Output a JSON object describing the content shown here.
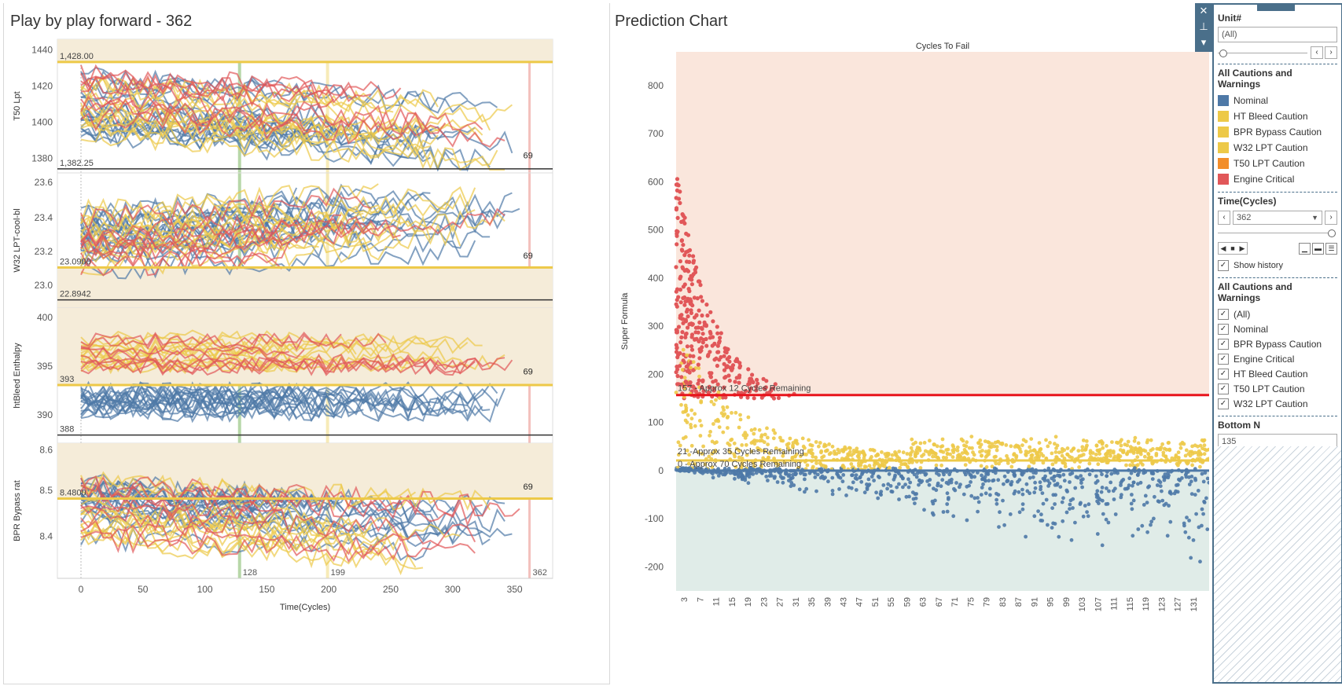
{
  "left": {
    "title": "Play by play forward - 362",
    "xlabel": "Time(Cycles)",
    "x_ticks": [
      "0",
      "50",
      "100",
      "150",
      "200",
      "250",
      "300",
      "350"
    ],
    "vlines": {
      "first": "128",
      "second": "199",
      "current": "362"
    },
    "charts": [
      {
        "ylabel": "T50 Lpt",
        "y_ticks": [
          "1440",
          "1420",
          "1400",
          "1380"
        ],
        "ref_high": "1,428.00",
        "ref_low": "1,382.25",
        "end_count": "69"
      },
      {
        "ylabel": "W32 LPT-cool-bl",
        "y_ticks": [
          "23.6",
          "23.4",
          "23.2",
          "23.0"
        ],
        "ref_high": "23.0900",
        "ref_low": "22.8942",
        "end_count": "69"
      },
      {
        "ylabel": "htBleed Enthalpy",
        "y_ticks": [
          "400",
          "395",
          "390"
        ],
        "ref_high": "393",
        "ref_low": "388",
        "end_count": "69"
      },
      {
        "ylabel": "BPR Bypass rat",
        "y_ticks": [
          "8.6",
          "8.5",
          "8.4"
        ],
        "ref_high": "8.4800",
        "ref_low": "",
        "end_count": "69"
      }
    ]
  },
  "right": {
    "title": "Prediction Chart",
    "chart_title": "Cycles To Fail",
    "ylabel": "Super Formula",
    "y_ticks": [
      "800",
      "700",
      "600",
      "500",
      "400",
      "300",
      "200",
      "100",
      "0",
      "-100",
      "-200"
    ],
    "x_ticks": [
      "3",
      "7",
      "11",
      "15",
      "19",
      "23",
      "27",
      "31",
      "35",
      "39",
      "43",
      "47",
      "51",
      "55",
      "59",
      "63",
      "67",
      "71",
      "75",
      "79",
      "83",
      "87",
      "91",
      "95",
      "99",
      "103",
      "107",
      "111",
      "115",
      "119",
      "123",
      "127",
      "131"
    ],
    "ref_lines": [
      "157 - Approx 12 Cycles Remaining",
      "21 -Approx 35 Cycles Remaining",
      "0 - Approx 70 Cycles Remaining"
    ]
  },
  "colors": {
    "nominal": "#4e79a7",
    "caution": "#edc948",
    "t50_caution": "#f28e2b",
    "critical": "#e15759",
    "critical_line": "#e8141c"
  },
  "sidebar": {
    "unit_label": "Unit#",
    "unit_value": "(All)",
    "legend_title": "All Cautions and Warnings",
    "legend_items": [
      "Nominal",
      "HT Bleed Caution",
      "BPR Bypass Caution",
      "W32 LPT Caution",
      "T50 LPT Caution",
      "Engine Critical"
    ],
    "time_label": "Time(Cycles)",
    "time_value": "362",
    "show_history": "Show history",
    "filter_title": "All Cautions and Warnings",
    "filter_items": [
      "(All)",
      "Nominal",
      "BPR Bypass Caution",
      "Engine Critical",
      "HT Bleed Caution",
      "T50 LPT Caution",
      "W32 LPT Caution"
    ],
    "bottom_n_label": "Bottom N",
    "bottom_n_value": "135"
  },
  "chart_data": {
    "type": "scatter",
    "title": "Cycles To Fail",
    "xlabel": "",
    "ylabel": "Super Formula",
    "ylim": [
      -250,
      870
    ],
    "x_range": [
      1,
      135
    ]
  }
}
